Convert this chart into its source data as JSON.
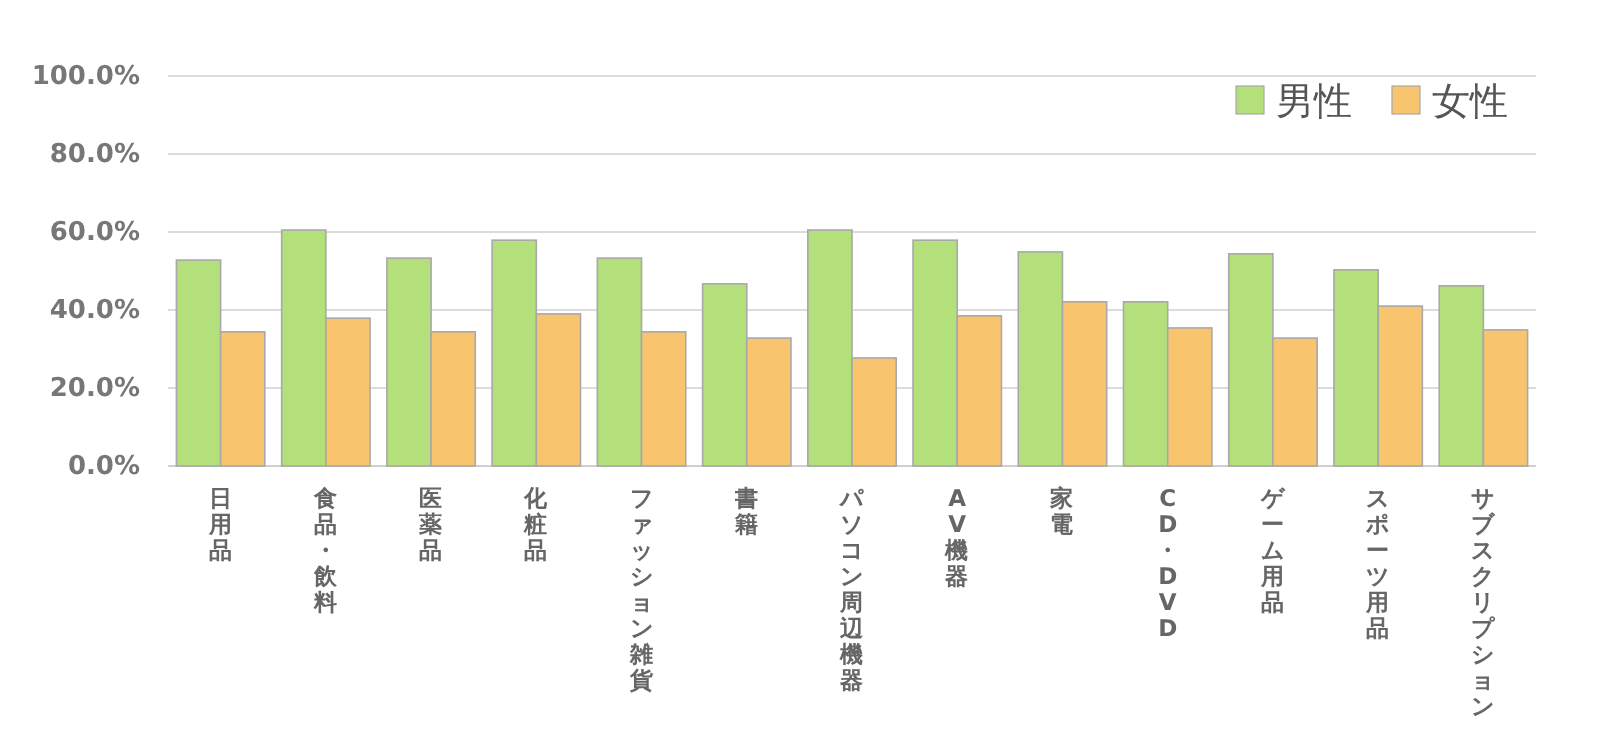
{
  "chart_data": {
    "type": "bar",
    "categories": [
      "日用品",
      "食品・飲料",
      "医薬品",
      "化粧品",
      "ファッション雑貨",
      "書籍",
      "パソコン周辺機器",
      "AV機器",
      "家電",
      "CD・DVD",
      "ゲーム用品",
      "スポーツ用品",
      "サブスクリプション"
    ],
    "series": [
      {
        "name": "男性",
        "color": "#b3e07a",
        "values": [
          52.8,
          60.5,
          53.3,
          57.9,
          53.3,
          46.7,
          60.5,
          57.9,
          54.9,
          42.1,
          54.4,
          50.3,
          46.2
        ]
      },
      {
        "name": "女性",
        "color": "#f9c46e",
        "values": [
          34.4,
          37.9,
          34.4,
          39.0,
          34.4,
          32.8,
          27.7,
          38.5,
          42.1,
          35.4,
          32.8,
          41.0,
          34.9
        ]
      }
    ],
    "ylim": [
      0,
      100
    ],
    "yticks": [
      {
        "value": 0,
        "label": "0.0%"
      },
      {
        "value": 20,
        "label": "20.0%"
      },
      {
        "value": 40,
        "label": "40.0%"
      },
      {
        "value": 60,
        "label": "60.0%"
      },
      {
        "value": 80,
        "label": "80.0%"
      },
      {
        "value": 100,
        "label": "100.0%"
      }
    ],
    "grid": "y",
    "legend": "top right"
  }
}
